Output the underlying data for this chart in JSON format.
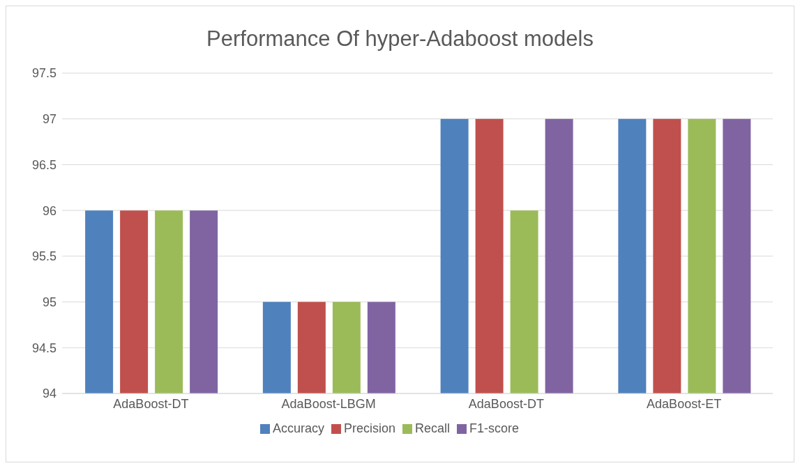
{
  "chart_data": {
    "type": "bar",
    "title": "Performance Of hyper-Adaboost models",
    "categories": [
      "AdaBoost-DT",
      "AdaBoost-LBGM",
      "AdaBoost-DT",
      "AdaBoost-ET"
    ],
    "series": [
      {
        "name": "Accuracy",
        "color": "#4f81bd",
        "values": [
          96,
          95,
          97,
          97
        ]
      },
      {
        "name": "Precision",
        "color": "#c0504d",
        "values": [
          96,
          95,
          97,
          97
        ]
      },
      {
        "name": "Recall",
        "color": "#9bbb59",
        "values": [
          96,
          95,
          96,
          97
        ]
      },
      {
        "name": "F1-score",
        "color": "#8064a2",
        "values": [
          96,
          95,
          97,
          97
        ]
      }
    ],
    "ylim": [
      94,
      97.5
    ],
    "yticks": [
      94,
      94.5,
      95,
      95.5,
      96,
      96.5,
      97,
      97.5
    ],
    "grid": "y",
    "legend": "bottom"
  }
}
